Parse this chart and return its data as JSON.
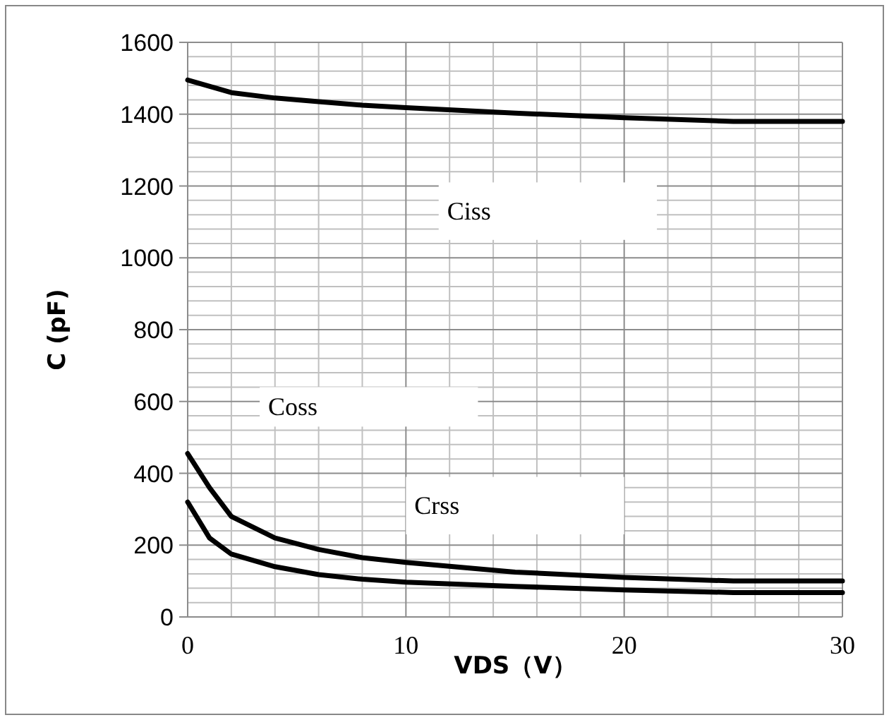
{
  "chart_data": {
    "type": "line",
    "xlabel": "VDS（V）",
    "ylabel": "C (pF)",
    "xlim": [
      0,
      30
    ],
    "xticks": [
      0,
      10,
      20,
      30
    ],
    "ylim": [
      0,
      1600
    ],
    "yticks": [
      0,
      200,
      400,
      600,
      800,
      1000,
      1200,
      1400,
      1600
    ],
    "grid": true,
    "marker": "none",
    "line_style": "solid",
    "annotations": [
      "Ciss",
      "Coss",
      "Crss"
    ],
    "series": [
      {
        "color": "#000000",
        "x": [
          0,
          2,
          4,
          6,
          8,
          10,
          15,
          20,
          25,
          30
        ],
        "values": [
          1495,
          1460,
          1445,
          1435,
          1425,
          1418,
          1403,
          1390,
          1380,
          1380
        ]
      },
      {
        "color": "#000000",
        "x": [
          0,
          1,
          2,
          4,
          6,
          8,
          10,
          15,
          20,
          25,
          30
        ],
        "values": [
          455,
          360,
          280,
          220,
          188,
          165,
          152,
          125,
          110,
          100,
          100
        ]
      },
      {
        "color": "#000000",
        "x": [
          0,
          1,
          2,
          4,
          6,
          8,
          10,
          15,
          20,
          25,
          30
        ],
        "values": [
          320,
          220,
          175,
          140,
          118,
          105,
          97,
          85,
          75,
          68,
          68
        ]
      }
    ]
  }
}
